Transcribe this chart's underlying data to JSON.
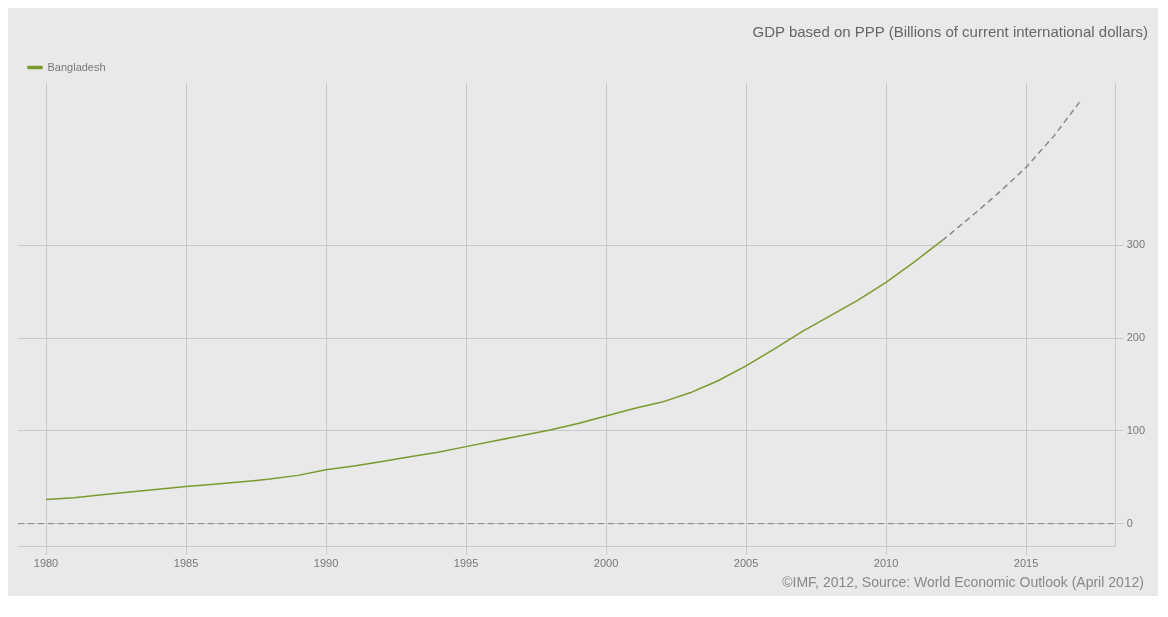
{
  "chart_data": {
    "type": "line",
    "title": "GDP based on PPP (Billions of current international dollars)",
    "x": [
      1980,
      1981,
      1982,
      1983,
      1984,
      1985,
      1986,
      1987,
      1988,
      1989,
      1990,
      1991,
      1992,
      1993,
      1994,
      1995,
      1996,
      1997,
      1998,
      1999,
      2000,
      2001,
      2002,
      2003,
      2004,
      2005,
      2006,
      2007,
      2008,
      2009,
      2010,
      2011,
      2012
    ],
    "series": [
      {
        "name": "Bangladesh",
        "color": "#7a9a2e",
        "values": [
          26,
          28,
          31,
          34,
          37,
          40,
          42.5,
          45,
          48,
          52,
          58,
          62,
          67,
          72,
          77,
          83,
          89,
          95,
          101,
          108,
          116,
          124,
          131,
          141,
          154,
          170,
          188,
          207,
          224,
          241,
          260,
          282,
          305
        ]
      },
      {
        "x": [
          2012,
          2013,
          2014,
          2015,
          2016,
          2017
        ],
        "color": "#888888",
        "line_style": "dashed",
        "values": [
          305,
          330,
          356,
          384,
          418,
          458
        ]
      }
    ],
    "xlim": [
      1979,
      2018.2
    ],
    "xticks": [
      1980,
      1985,
      1990,
      1995,
      2000,
      2005,
      2010,
      2015
    ],
    "ylim": [
      -25,
      475
    ],
    "yticks": [
      0,
      100,
      200,
      300
    ],
    "ref_lines": [
      {
        "axis": "y",
        "value": 0,
        "color": "#888888",
        "line_style": "dashed"
      }
    ],
    "grid": true,
    "legend": "top left",
    "marker": "none",
    "annotations": [
      "©IMF, 2012, Source: World Economic Outlook (April 2012)"
    ]
  }
}
